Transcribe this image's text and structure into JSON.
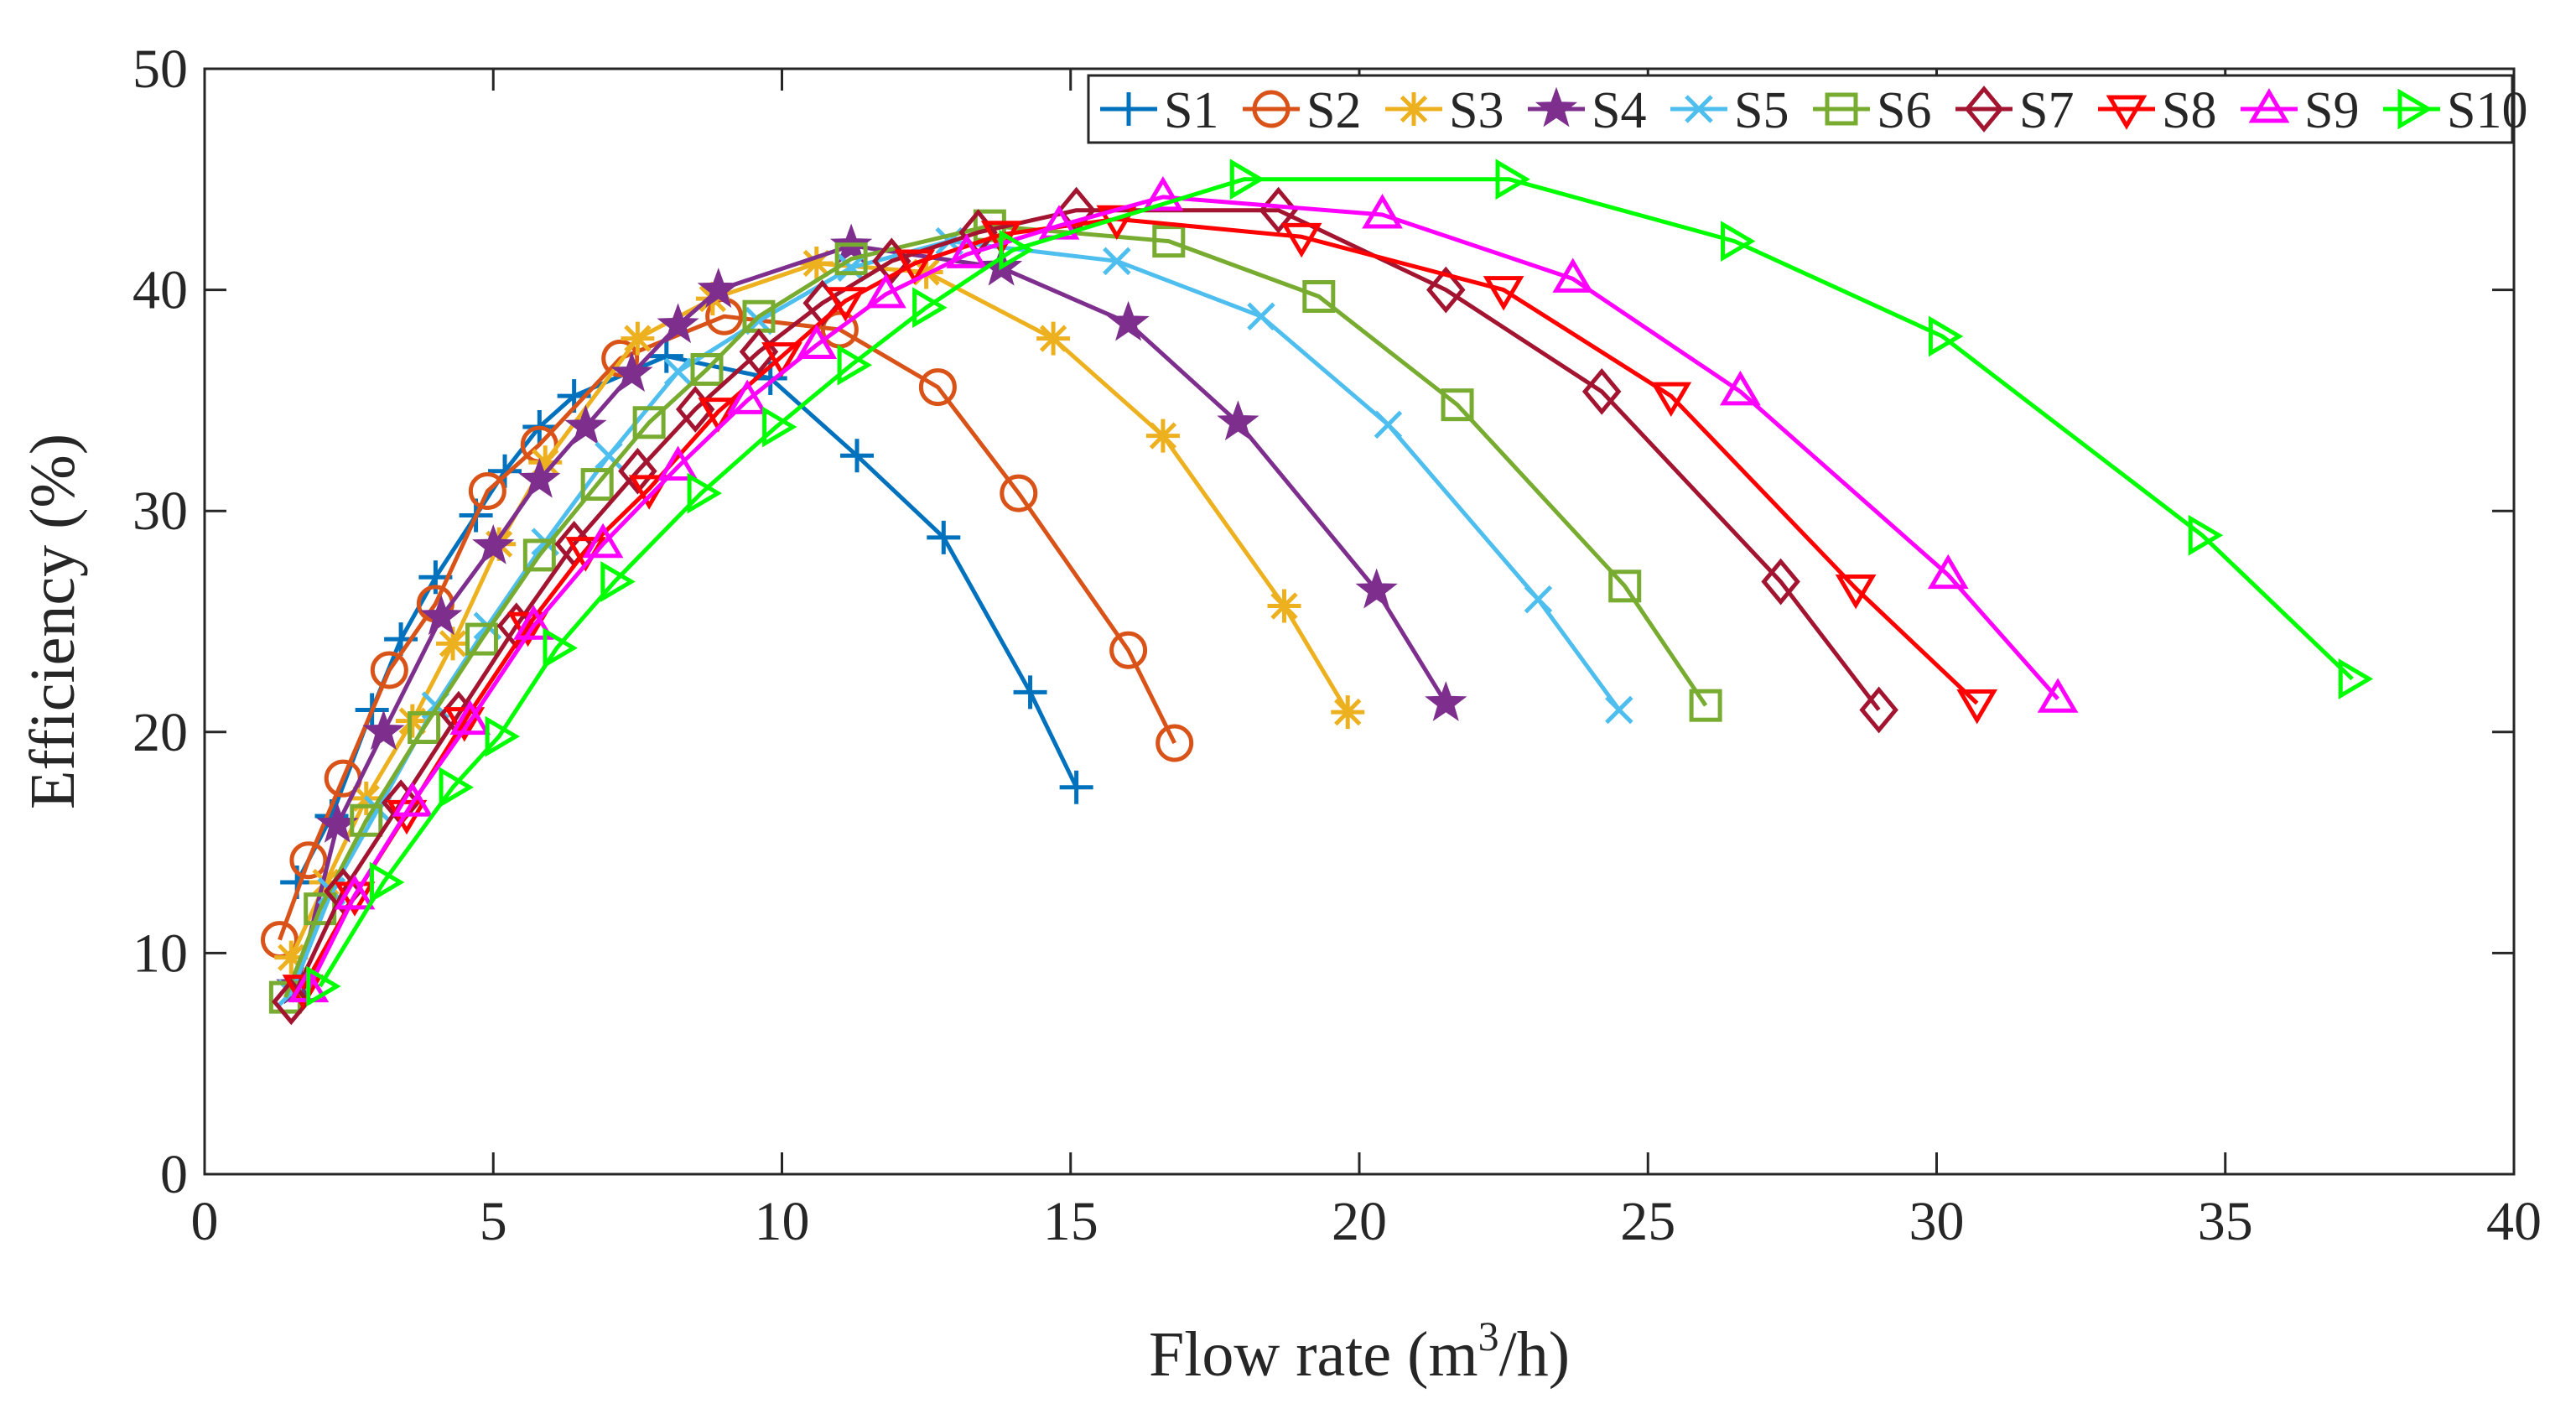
{
  "chart_data": {
    "type": "line",
    "title": "",
    "xlabel": "Flow rate (m",
    "xlabel_sup": "3",
    "xlabel_tail": "/h)",
    "ylabel": "Efficiency (%)",
    "xlim": [
      0,
      40
    ],
    "ylim": [
      0,
      50
    ],
    "xticks": [
      0,
      5,
      10,
      15,
      20,
      25,
      30,
      35,
      40
    ],
    "yticks": [
      0,
      10,
      20,
      30,
      40,
      50
    ],
    "grid": false,
    "legend_position": "top-right",
    "series": [
      {
        "name": "S1",
        "color": "#0072BD",
        "marker": "plus",
        "x": [
          1.6,
          2.2,
          2.9,
          3.4,
          4.0,
          4.7,
          5.2,
          5.8,
          6.4,
          8.0,
          9.8,
          11.3,
          12.8,
          14.3,
          15.1
        ],
        "y": [
          13.2,
          16.2,
          21.0,
          24.2,
          27.0,
          29.8,
          31.8,
          33.8,
          35.2,
          37.0,
          36.0,
          32.5,
          28.8,
          21.8,
          17.5
        ]
      },
      {
        "name": "S2",
        "color": "#D95319",
        "marker": "circle",
        "x": [
          1.3,
          1.8,
          2.4,
          3.2,
          4.0,
          4.9,
          5.8,
          7.2,
          9.0,
          11.0,
          12.7,
          14.1,
          16.0,
          16.8
        ],
        "y": [
          10.6,
          14.2,
          17.9,
          22.8,
          25.8,
          30.9,
          33.0,
          36.9,
          38.8,
          38.2,
          35.6,
          30.8,
          23.7,
          19.5
        ]
      },
      {
        "name": "S3",
        "color": "#EDB120",
        "marker": "asterisk",
        "x": [
          1.5,
          2.1,
          2.8,
          3.6,
          4.3,
          5.1,
          5.9,
          7.5,
          8.8,
          10.6,
          12.5,
          14.7,
          16.6,
          18.7,
          19.8
        ],
        "y": [
          9.8,
          13.2,
          17.0,
          20.5,
          24.0,
          28.5,
          32.2,
          37.8,
          39.6,
          41.2,
          40.8,
          37.8,
          33.4,
          25.7,
          20.9
        ]
      },
      {
        "name": "S4",
        "color": "#7E2F8E",
        "marker": "star",
        "x": [
          1.6,
          2.3,
          3.1,
          4.1,
          5.0,
          5.8,
          6.6,
          7.4,
          8.2,
          8.9,
          11.2,
          13.8,
          16.0,
          17.9,
          20.3,
          21.5
        ],
        "y": [
          8.5,
          15.8,
          20.0,
          25.2,
          28.4,
          31.4,
          33.8,
          36.2,
          38.4,
          40.0,
          42.0,
          41.0,
          38.5,
          34.0,
          26.4,
          21.3
        ]
      },
      {
        "name": "S5",
        "color": "#4DBEEE",
        "marker": "x",
        "x": [
          1.5,
          2.2,
          3.0,
          4.0,
          4.9,
          5.9,
          7.0,
          8.2,
          9.6,
          11.2,
          12.9,
          15.8,
          18.3,
          20.5,
          23.1,
          24.5
        ],
        "y": [
          8.2,
          12.8,
          16.5,
          21.2,
          24.8,
          28.6,
          32.5,
          36.3,
          38.6,
          41.0,
          42.2,
          41.3,
          38.8,
          33.9,
          26.0,
          21.0
        ]
      },
      {
        "name": "S6",
        "color": "#77AC30",
        "marker": "square",
        "x": [
          1.4,
          2.0,
          2.8,
          3.8,
          4.8,
          5.8,
          6.8,
          7.7,
          8.7,
          9.6,
          11.2,
          13.6,
          16.7,
          19.3,
          21.7,
          24.6,
          26.0
        ],
        "y": [
          8.0,
          12.0,
          16.0,
          20.2,
          24.2,
          28.0,
          31.2,
          34.0,
          36.4,
          38.8,
          41.4,
          42.9,
          42.2,
          39.7,
          34.8,
          26.6,
          21.2
        ]
      },
      {
        "name": "S7",
        "color": "#A2142F",
        "marker": "diamond",
        "x": [
          1.5,
          2.4,
          3.4,
          4.4,
          5.4,
          6.4,
          7.5,
          8.5,
          9.6,
          10.7,
          11.9,
          13.4,
          15.1,
          18.6,
          21.5,
          24.2,
          27.3,
          29.0
        ],
        "y": [
          7.8,
          12.8,
          16.8,
          20.8,
          24.8,
          28.5,
          31.8,
          34.6,
          37.2,
          39.4,
          41.3,
          42.6,
          43.6,
          43.6,
          40.0,
          35.4,
          26.8,
          21.0
        ]
      },
      {
        "name": "S8",
        "color": "#FF0000",
        "marker": "triangle-down",
        "x": [
          1.7,
          2.6,
          3.5,
          4.5,
          5.6,
          6.6,
          7.7,
          8.9,
          10.0,
          11.1,
          12.3,
          13.8,
          15.8,
          19.0,
          22.5,
          25.4,
          28.6,
          30.7
        ],
        "y": [
          8.4,
          12.6,
          16.3,
          20.5,
          24.8,
          28.2,
          31.0,
          34.5,
          37.0,
          39.5,
          41.2,
          42.5,
          43.2,
          42.4,
          40.0,
          35.2,
          26.5,
          21.3
        ]
      },
      {
        "name": "S9",
        "color": "#FF00FF",
        "marker": "triangle-up",
        "x": [
          1.8,
          2.6,
          3.6,
          4.6,
          5.7,
          6.9,
          8.2,
          9.4,
          10.6,
          11.8,
          13.2,
          14.8,
          16.6,
          20.4,
          23.7,
          26.6,
          30.2,
          32.1
        ],
        "y": [
          8.4,
          12.6,
          16.8,
          20.5,
          24.8,
          28.5,
          32.0,
          35.0,
          37.5,
          39.8,
          41.6,
          42.9,
          44.2,
          43.4,
          40.5,
          35.4,
          27.1,
          21.5
        ]
      },
      {
        "name": "S10",
        "color": "#00FF00",
        "marker": "triangle-right",
        "x": [
          2.0,
          3.1,
          4.3,
          5.1,
          6.1,
          7.1,
          8.6,
          9.9,
          11.2,
          12.5,
          14.0,
          18.0,
          22.6,
          26.5,
          30.1,
          34.6,
          37.2
        ],
        "y": [
          8.5,
          13.2,
          17.5,
          19.8,
          23.8,
          26.8,
          30.8,
          33.8,
          36.6,
          39.2,
          41.8,
          45.0,
          45.0,
          42.2,
          37.9,
          28.9,
          22.4
        ]
      }
    ]
  }
}
